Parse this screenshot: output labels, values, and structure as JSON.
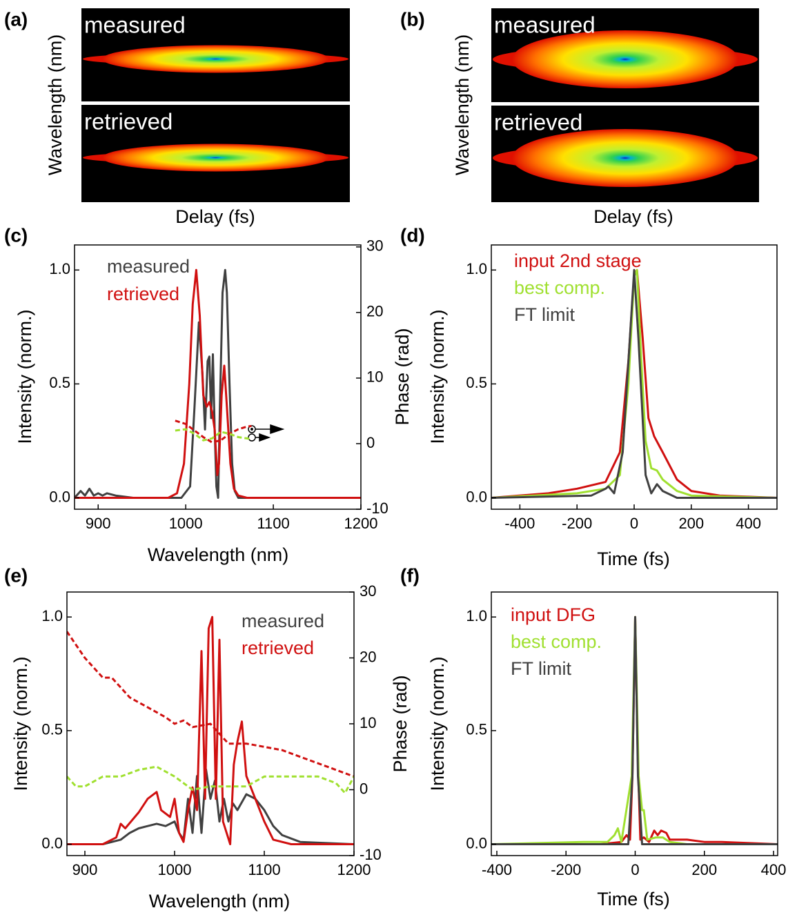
{
  "chart_data": [
    {
      "type": "heatmap",
      "panel_label": "(a)",
      "panels": [
        "measured",
        "retrieved"
      ],
      "xlabel": "Delay (fs)",
      "ylabel": "Wavelength (nm)"
    },
    {
      "type": "heatmap",
      "panel_label": "(b)",
      "panels": [
        "measured",
        "retrieved"
      ],
      "xlabel": "Delay (fs)",
      "ylabel": "Wavelength (nm)"
    },
    {
      "type": "line",
      "panel_label": "(c)",
      "xlabel": "Wavelength (nm)",
      "ylabel": "Intensity (norm.)",
      "y2label": "Phase (rad)",
      "xlim": [
        873,
        1200
      ],
      "xticks": [
        900,
        1000,
        1100,
        1200
      ],
      "ylim": [
        -0.05,
        1.11
      ],
      "yticks": [
        {
          "value": 0,
          "label": "0.0"
        },
        0.5,
        {
          "value": 1,
          "label": "1.0"
        }
      ],
      "y2lim": [
        -10,
        30.3
      ],
      "y2ticks": [
        -10,
        0,
        10,
        20,
        30
      ],
      "series": [
        {
          "name": "measured",
          "color": "#404040",
          "x": [
            873,
            880,
            885,
            890,
            895,
            900,
            905,
            910,
            920,
            940,
            980,
            995,
            1005,
            1010,
            1015,
            1019,
            1022,
            1025,
            1027,
            1029,
            1031,
            1033,
            1035,
            1037,
            1039,
            1042,
            1045,
            1047,
            1050,
            1053,
            1056,
            1060,
            1080,
            1200
          ],
          "values": [
            0.0,
            0.03,
            0.01,
            0.04,
            0.01,
            0.02,
            0.01,
            0.02,
            0.01,
            0.0,
            0.0,
            0.0,
            0.05,
            0.4,
            0.77,
            0.55,
            0.3,
            0.6,
            0.62,
            0.35,
            0.63,
            0.3,
            0.05,
            0.0,
            0.4,
            0.9,
            1.0,
            0.9,
            0.5,
            0.15,
            0.03,
            0.0,
            0.0,
            0.0
          ]
        },
        {
          "name": "retrieved",
          "color": "#d01010",
          "x": [
            873,
            980,
            990,
            998,
            1004,
            1008,
            1012,
            1016,
            1020,
            1024,
            1027,
            1030,
            1033,
            1036,
            1038,
            1041,
            1044,
            1047,
            1051,
            1055,
            1060,
            1070,
            1200
          ],
          "values": [
            0,
            0,
            0.02,
            0.15,
            0.5,
            0.85,
            1.0,
            0.8,
            0.45,
            0.4,
            0.42,
            0.38,
            0.3,
            0.1,
            0.15,
            0.45,
            0.58,
            0.4,
            0.15,
            0.04,
            0.01,
            0,
            0
          ]
        },
        {
          "color": "#d01010",
          "dashed": true,
          "axis": "y2",
          "x": [
            988,
            1000,
            1010,
            1020,
            1030,
            1040,
            1050,
            1060,
            1070,
            1075
          ],
          "values": [
            3.5,
            3,
            2,
            1,
            0.2,
            0.5,
            1.5,
            2.2,
            2.6,
            2.7
          ]
        },
        {
          "color": "#a0e030",
          "dashed": true,
          "axis": "y2",
          "x": [
            988,
            1000,
            1010,
            1020,
            1030,
            1040,
            1050,
            1060,
            1070,
            1075
          ],
          "values": [
            2,
            2.2,
            1.5,
            0.5,
            0.8,
            1.8,
            1.5,
            1.0,
            0.8,
            0.7
          ]
        }
      ]
    },
    {
      "type": "line",
      "panel_label": "(d)",
      "xlabel": "Time (fs)",
      "ylabel": "Intensity (norm.)",
      "xlim": [
        -500,
        500
      ],
      "xticks": [
        -400,
        -200,
        0,
        200,
        400
      ],
      "ylim": [
        -0.05,
        1.11
      ],
      "yticks": [
        {
          "value": 0,
          "label": "0.0"
        },
        0.5,
        {
          "value": 1,
          "label": "1.0"
        }
      ],
      "series": [
        {
          "name": "input 2nd stage",
          "color": "#d01010",
          "x": [
            -500,
            -300,
            -200,
            -100,
            -50,
            -20,
            0,
            10,
            30,
            50,
            70,
            100,
            150,
            200,
            300,
            500
          ],
          "values": [
            0,
            0.02,
            0.04,
            0.07,
            0.2,
            0.6,
            0.98,
            1.0,
            0.7,
            0.35,
            0.27,
            0.2,
            0.08,
            0.03,
            0.01,
            0
          ]
        },
        {
          "name": "best comp.",
          "color": "#a0e030",
          "x": [
            -500,
            -200,
            -100,
            -50,
            -20,
            0,
            10,
            25,
            40,
            60,
            80,
            100,
            150,
            200,
            500
          ],
          "values": [
            0,
            0.02,
            0.04,
            0.1,
            0.5,
            0.97,
            1.0,
            0.6,
            0.25,
            0.13,
            0.12,
            0.08,
            0.03,
            0.01,
            0
          ]
        },
        {
          "name": "FT limit",
          "color": "#404040",
          "x": [
            -500,
            -150,
            -100,
            -90,
            -70,
            -40,
            -15,
            0,
            15,
            40,
            60,
            80,
            100,
            150,
            500
          ],
          "values": [
            0,
            0.01,
            0.04,
            0.05,
            0.02,
            0.2,
            0.7,
            1.0,
            0.7,
            0.1,
            0.02,
            0.06,
            0.03,
            0,
            0
          ]
        }
      ]
    },
    {
      "type": "line",
      "panel_label": "(e)",
      "xlabel": "Wavelength (nm)",
      "ylabel": "Intensity (norm.)",
      "y2label": "Phase (rad)",
      "xlim": [
        880,
        1200
      ],
      "xticks": [
        900,
        1000,
        1100,
        1200
      ],
      "ylim": [
        -0.05,
        1.11
      ],
      "yticks": [
        {
          "value": 0,
          "label": "0.0"
        },
        0.5,
        {
          "value": 1,
          "label": "1.0"
        }
      ],
      "y2lim": [
        -10,
        30
      ],
      "y2ticks": [
        -10,
        0,
        10,
        20,
        30
      ],
      "series": [
        {
          "name": "measured",
          "color": "#404040",
          "x": [
            880,
            920,
            940,
            950,
            960,
            970,
            980,
            990,
            1000,
            1005,
            1010,
            1015,
            1020,
            1025,
            1030,
            1035,
            1040,
            1045,
            1050,
            1055,
            1060,
            1065,
            1070,
            1080,
            1090,
            1100,
            1110,
            1120,
            1140,
            1200
          ],
          "values": [
            0,
            0,
            0.02,
            0.05,
            0.07,
            0.08,
            0.09,
            0.08,
            0.1,
            0.05,
            0.02,
            0.2,
            0.05,
            0.3,
            0.05,
            0.33,
            0.2,
            0.28,
            0.1,
            0.2,
            0.1,
            0.18,
            0.15,
            0.22,
            0.2,
            0.15,
            0.08,
            0.04,
            0.01,
            0
          ]
        },
        {
          "name": "retrieved",
          "color": "#d01010",
          "x": [
            880,
            920,
            935,
            940,
            945,
            960,
            970,
            980,
            985,
            995,
            1000,
            1005,
            1010,
            1015,
            1020,
            1025,
            1030,
            1034,
            1038,
            1042,
            1046,
            1050,
            1054,
            1058,
            1062,
            1066,
            1070,
            1075,
            1080,
            1085,
            1090,
            1100,
            1110,
            1130,
            1200
          ],
          "values": [
            0,
            0,
            0.03,
            0.09,
            0.07,
            0.14,
            0.2,
            0.23,
            0.15,
            0.12,
            0.2,
            0.05,
            0.01,
            0.15,
            0.25,
            0.15,
            0.85,
            0.2,
            0.95,
            1.0,
            0.2,
            0.9,
            0.1,
            0.05,
            0.0,
            0.35,
            0.45,
            0.54,
            0.3,
            0.25,
            0.2,
            0.1,
            0.02,
            0,
            0
          ]
        },
        {
          "color": "#d01010",
          "dashed": true,
          "axis": "y2",
          "x": [
            880,
            900,
            920,
            930,
            950,
            970,
            990,
            1000,
            1010,
            1020,
            1040,
            1060,
            1080,
            1100,
            1120,
            1140,
            1160,
            1180,
            1200
          ],
          "values": [
            24,
            20,
            17,
            17,
            14,
            12.5,
            11,
            10,
            10.5,
            9.5,
            10,
            7,
            7,
            6.5,
            6,
            5,
            4,
            3,
            2
          ]
        },
        {
          "color": "#a0e030",
          "dashed": true,
          "axis": "y2",
          "x": [
            880,
            890,
            900,
            920,
            940,
            960,
            980,
            1000,
            1020,
            1040,
            1060,
            1080,
            1100,
            1120,
            1140,
            1160,
            1180,
            1190,
            1200
          ],
          "values": [
            2,
            0.5,
            0.5,
            2,
            2,
            3,
            3.5,
            2,
            0,
            0.5,
            0.5,
            0.5,
            2,
            2,
            2,
            2,
            1,
            -0.5,
            2
          ]
        }
      ]
    },
    {
      "type": "line",
      "panel_label": "(f)",
      "xlabel": "Time (fs)",
      "ylabel": "Intensity (norm.)",
      "xlim": [
        -416,
        412
      ],
      "xticks": [
        -400,
        -200,
        0,
        200,
        400
      ],
      "ylim": [
        -0.05,
        1.11
      ],
      "yticks": [
        {
          "value": 0,
          "label": "0.0"
        },
        0.5,
        {
          "value": 1,
          "label": "1.0"
        }
      ],
      "series": [
        {
          "name": "input DFG",
          "color": "#d01010",
          "x": [
            -416,
            -100,
            -40,
            -25,
            -15,
            -8,
            0,
            8,
            15,
            25,
            40,
            55,
            65,
            75,
            90,
            100,
            120,
            150,
            200,
            250,
            412
          ],
          "values": [
            0,
            0,
            0.01,
            0.04,
            0.02,
            0.3,
            1.0,
            0.35,
            0.02,
            0.03,
            0.01,
            0.06,
            0.04,
            0.06,
            0.05,
            0.02,
            0.02,
            0.02,
            0.01,
            0.01,
            0
          ]
        },
        {
          "name": "best comp.",
          "color": "#a0e030",
          "x": [
            -416,
            -150,
            -80,
            -60,
            -50,
            -40,
            -10,
            0,
            10,
            20,
            25,
            35,
            60,
            80,
            100,
            150,
            412
          ],
          "values": [
            0,
            0.01,
            0.01,
            0.04,
            0.07,
            0.01,
            0.3,
            1.0,
            0.3,
            0.15,
            0.15,
            0.02,
            0.03,
            0.03,
            0.01,
            0,
            0
          ]
        },
        {
          "name": "FT limit",
          "color": "#404040",
          "x": [
            -416,
            -20,
            -8,
            0,
            8,
            20,
            412
          ],
          "values": [
            0,
            0,
            0.3,
            1.0,
            0.3,
            0,
            0
          ]
        }
      ]
    }
  ]
}
